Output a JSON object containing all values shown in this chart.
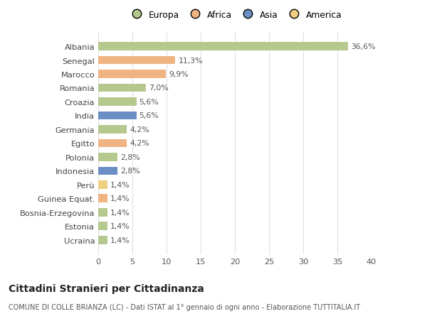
{
  "countries": [
    "Albania",
    "Senegal",
    "Marocco",
    "Romania",
    "Croazia",
    "India",
    "Germania",
    "Egitto",
    "Polonia",
    "Indonesia",
    "Perù",
    "Guinea Equat.",
    "Bosnia-Erzegovina",
    "Estonia",
    "Ucraina"
  ],
  "values": [
    36.6,
    11.3,
    9.9,
    7.0,
    5.6,
    5.6,
    4.2,
    4.2,
    2.8,
    2.8,
    1.4,
    1.4,
    1.4,
    1.4,
    1.4
  ],
  "labels": [
    "36,6%",
    "11,3%",
    "9,9%",
    "7,0%",
    "5,6%",
    "5,6%",
    "4,2%",
    "4,2%",
    "2,8%",
    "2,8%",
    "1,4%",
    "1,4%",
    "1,4%",
    "1,4%",
    "1,4%"
  ],
  "continents": [
    "Europa",
    "Africa",
    "Africa",
    "Europa",
    "Europa",
    "Asia",
    "Europa",
    "Africa",
    "Europa",
    "Asia",
    "America",
    "Africa",
    "Europa",
    "Europa",
    "Europa"
  ],
  "continent_colors": {
    "Europa": "#b5c98e",
    "Africa": "#f0b482",
    "Asia": "#6b8ec4",
    "America": "#f0d080"
  },
  "legend_order": [
    "Europa",
    "Africa",
    "Asia",
    "America"
  ],
  "title": "Cittadini Stranieri per Cittadinanza",
  "subtitle": "COMUNE DI COLLE BRIANZA (LC) - Dati ISTAT al 1° gennaio di ogni anno - Elaborazione TUTTITALIA.IT",
  "xlim": [
    0,
    40
  ],
  "xticks": [
    0,
    5,
    10,
    15,
    20,
    25,
    30,
    35,
    40
  ],
  "bg_color": "#ffffff",
  "grid_color": "#e0e0e0"
}
